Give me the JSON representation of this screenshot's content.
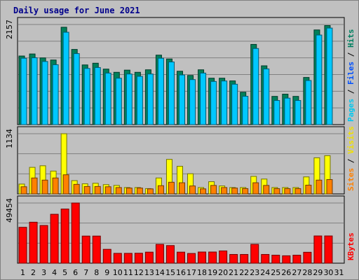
{
  "chart_data": {
    "type": "bar",
    "title": "Daily usage for June 2021",
    "categories": [
      "1",
      "2",
      "3",
      "4",
      "5",
      "6",
      "7",
      "8",
      "9",
      "10",
      "11",
      "12",
      "13",
      "14",
      "15",
      "16",
      "17",
      "18",
      "19",
      "20",
      "21",
      "22",
      "23",
      "24",
      "25",
      "26",
      "27",
      "28",
      "29",
      "30",
      "31"
    ],
    "weekend_days": [
      "5",
      "6",
      "12",
      "13",
      "19",
      "20",
      "26",
      "27"
    ],
    "panels": [
      {
        "name": "hits-files-pages",
        "ymax_label": "2157",
        "ymax": 2157,
        "legend": [
          {
            "text": "Pages",
            "color": "#00c8f0"
          },
          {
            "text": "Files",
            "color": "#0050ff"
          },
          {
            "text": "Hits",
            "color": "#008060"
          }
        ],
        "series": [
          {
            "name": "Hits",
            "color": "#00805a",
            "values": [
              1478,
              1522,
              1437,
              1392,
              2098,
              1620,
              1286,
              1323,
              1196,
              1127,
              1174,
              1127,
              1181,
              1497,
              1414,
              1150,
              1059,
              1181,
              1000,
              1000,
              942,
              698,
              1728,
              1267,
              608,
              656,
              608,
              1016,
              2040,
              2134,
              0
            ]
          },
          {
            "name": "Files",
            "color": "#00c8ff",
            "values": [
              1430,
              1440,
              1360,
              1290,
              1990,
              1530,
              1210,
              1230,
              1110,
              1000,
              1090,
              1040,
              1090,
              1430,
              1350,
              1070,
              970,
              1110,
              930,
              940,
              870,
              610,
              1640,
              1200,
              520,
              570,
              520,
              950,
              1930,
              2080,
              0
            ]
          }
        ]
      },
      {
        "name": "sites-visits",
        "ymax_label": "1134",
        "ymax": 1134,
        "legend": [
          {
            "text": "Sites",
            "color": "#ff8000"
          },
          {
            "text": "Visits",
            "color": "#f0e000"
          }
        ],
        "series": [
          {
            "name": "Visits",
            "color": "#ffff00",
            "values": [
              185,
              500,
              530,
              430,
              1134,
              250,
              190,
              200,
              175,
              160,
              120,
              120,
              100,
              300,
              650,
              520,
              380,
              120,
              230,
              150,
              120,
              120,
              330,
              280,
              120,
              120,
              120,
              320,
              680,
              720,
              0
            ]
          },
          {
            "name": "Sites",
            "color": "#ff8000",
            "values": [
              135,
              300,
              260,
              300,
              360,
              180,
              140,
              140,
              135,
              120,
              110,
              110,
              95,
              155,
              220,
              210,
              150,
              95,
              160,
              120,
              110,
              100,
              210,
              160,
              100,
              100,
              100,
              165,
              260,
              270,
              0
            ]
          }
        ]
      },
      {
        "name": "kbytes",
        "ymax_label": "49454",
        "ymax": 49454,
        "legend": [
          {
            "text": "KBytes",
            "color": "#ff0000"
          }
        ],
        "series": [
          {
            "name": "KBytes",
            "color": "#ff0000",
            "values": [
              29500,
              33700,
              31000,
              40200,
              44500,
              49454,
              22300,
              22300,
              11400,
              8100,
              8100,
              8200,
              9100,
              15500,
              14500,
              9100,
              8000,
              9200,
              9200,
              10100,
              7200,
              7200,
              15500,
              7200,
              6600,
              6100,
              6600,
              9000,
              22400,
              22400,
              0
            ]
          }
        ]
      }
    ]
  }
}
